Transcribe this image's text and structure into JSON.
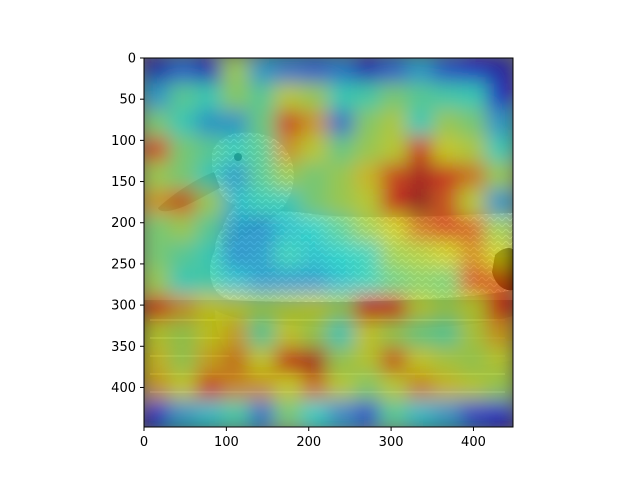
{
  "figure": {
    "overlay": "attention-heatmap",
    "colormap": "jet",
    "subject": "duck-on-water"
  },
  "chart_data": {
    "type": "heatmap",
    "title": "",
    "xlabel": "",
    "ylabel": "",
    "xlim": [
      0,
      448
    ],
    "ylim": [
      448,
      0
    ],
    "xticks": [
      0,
      100,
      200,
      300,
      400
    ],
    "yticks": [
      0,
      50,
      100,
      150,
      200,
      250,
      300,
      350,
      400
    ],
    "xtick_labels": [
      "0",
      "100",
      "200",
      "300",
      "400"
    ],
    "ytick_labels": [
      "0",
      "50",
      "100",
      "150",
      "200",
      "250",
      "300",
      "350",
      "400"
    ],
    "grid_rows": 14,
    "grid_cols": 14,
    "cell_size": 32,
    "heat": [
      [
        0.08,
        0.22,
        0.1,
        0.55,
        0.3,
        0.25,
        0.22,
        0.25,
        0.1,
        0.22,
        0.3,
        0.2,
        0.12,
        0.08
      ],
      [
        0.3,
        0.45,
        0.4,
        0.52,
        0.45,
        0.6,
        0.55,
        0.4,
        0.42,
        0.5,
        0.45,
        0.42,
        0.4,
        0.12
      ],
      [
        0.5,
        0.4,
        0.3,
        0.3,
        0.48,
        0.82,
        0.7,
        0.25,
        0.52,
        0.58,
        0.4,
        0.55,
        0.5,
        0.3
      ],
      [
        0.82,
        0.5,
        0.45,
        0.4,
        0.45,
        0.7,
        0.6,
        0.48,
        0.55,
        0.6,
        0.85,
        0.62,
        0.58,
        0.4
      ],
      [
        0.55,
        0.5,
        0.4,
        0.3,
        0.45,
        0.55,
        0.5,
        0.55,
        0.65,
        0.82,
        0.92,
        0.85,
        0.75,
        0.55
      ],
      [
        0.7,
        0.78,
        0.55,
        0.35,
        0.4,
        0.4,
        0.5,
        0.55,
        0.6,
        0.88,
        0.95,
        0.8,
        0.6,
        0.3
      ],
      [
        0.5,
        0.55,
        0.45,
        0.3,
        0.28,
        0.35,
        0.38,
        0.45,
        0.55,
        0.62,
        0.75,
        0.82,
        0.78,
        0.55
      ],
      [
        0.5,
        0.45,
        0.4,
        0.28,
        0.3,
        0.4,
        0.35,
        0.38,
        0.4,
        0.55,
        0.58,
        0.62,
        0.72,
        0.62
      ],
      [
        0.55,
        0.4,
        0.42,
        0.35,
        0.3,
        0.3,
        0.3,
        0.35,
        0.4,
        0.48,
        0.52,
        0.5,
        0.8,
        0.78
      ],
      [
        0.85,
        0.7,
        0.62,
        0.6,
        0.55,
        0.58,
        0.6,
        0.55,
        0.88,
        0.85,
        0.6,
        0.55,
        0.6,
        0.88
      ],
      [
        0.6,
        0.55,
        0.62,
        0.68,
        0.45,
        0.62,
        0.55,
        0.4,
        0.62,
        0.55,
        0.48,
        0.45,
        0.58,
        0.7
      ],
      [
        0.65,
        0.55,
        0.68,
        0.75,
        0.62,
        0.88,
        0.92,
        0.55,
        0.6,
        0.78,
        0.62,
        0.58,
        0.55,
        0.6
      ],
      [
        0.7,
        0.62,
        0.82,
        0.72,
        0.7,
        0.62,
        0.75,
        0.6,
        0.52,
        0.6,
        0.72,
        0.65,
        0.6,
        0.55
      ],
      [
        0.12,
        0.3,
        0.35,
        0.42,
        0.25,
        0.5,
        0.38,
        0.28,
        0.2,
        0.45,
        0.35,
        0.3,
        0.18,
        0.12
      ]
    ]
  }
}
